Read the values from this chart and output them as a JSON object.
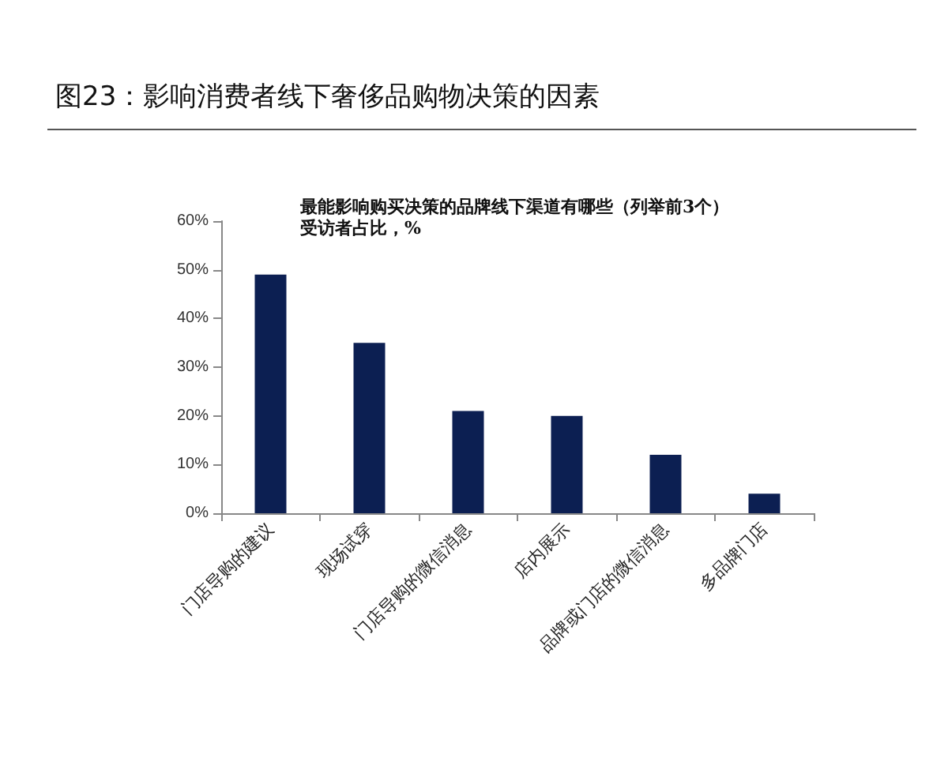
{
  "chart_data": {
    "type": "bar",
    "title": "图23：影响消费者线下奢侈品购物决策的因素",
    "subtitle": "最能影响购买决策的品牌线下渠道有哪些（列举前3个）",
    "annotations": [
      "受访者占比，%"
    ],
    "categories": [
      "门店导购的建议",
      "现场试穿",
      "门店导购的微信消息",
      "店内展示",
      "品牌或门店的微信消息",
      "多品牌门店"
    ],
    "values": [
      49,
      35,
      21,
      20,
      12,
      4
    ],
    "color": "#0c1f52",
    "ylim": [
      0,
      60
    ],
    "yticks": [
      {
        "value": 0,
        "label": "0%"
      },
      {
        "value": 10,
        "label": "10%"
      },
      {
        "value": 20,
        "label": "20%"
      },
      {
        "value": 30,
        "label": "30%"
      },
      {
        "value": 40,
        "label": "40%"
      },
      {
        "value": 50,
        "label": "50%"
      },
      {
        "value": 60,
        "label": "60%"
      }
    ],
    "grid": false
  }
}
